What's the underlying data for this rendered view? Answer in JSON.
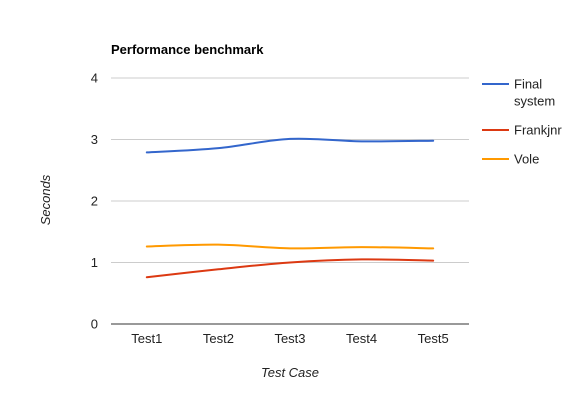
{
  "chart_data": {
    "type": "line",
    "title": "Performance benchmark",
    "xlabel": "Test Case",
    "ylabel": "Seconds",
    "categories": [
      "Test1",
      "Test2",
      "Test3",
      "Test4",
      "Test5"
    ],
    "ylim": [
      0,
      4
    ],
    "yticks": [
      "0",
      "1",
      "2",
      "3",
      "4"
    ],
    "grid": true,
    "legend_position": "right",
    "series": [
      {
        "name": "Final system",
        "legend_lines": [
          "Final",
          "system"
        ],
        "color": "#3366cc",
        "values": [
          2.79,
          2.86,
          3.01,
          2.97,
          2.98
        ]
      },
      {
        "name": "Frankjnr",
        "legend_lines": [
          "Frankjnr"
        ],
        "color": "#dc3912",
        "values": [
          0.76,
          0.89,
          1.0,
          1.05,
          1.03
        ]
      },
      {
        "name": "Vole",
        "legend_lines": [
          "Vole"
        ],
        "color": "#ff9900",
        "values": [
          1.26,
          1.29,
          1.23,
          1.25,
          1.23
        ]
      }
    ]
  }
}
